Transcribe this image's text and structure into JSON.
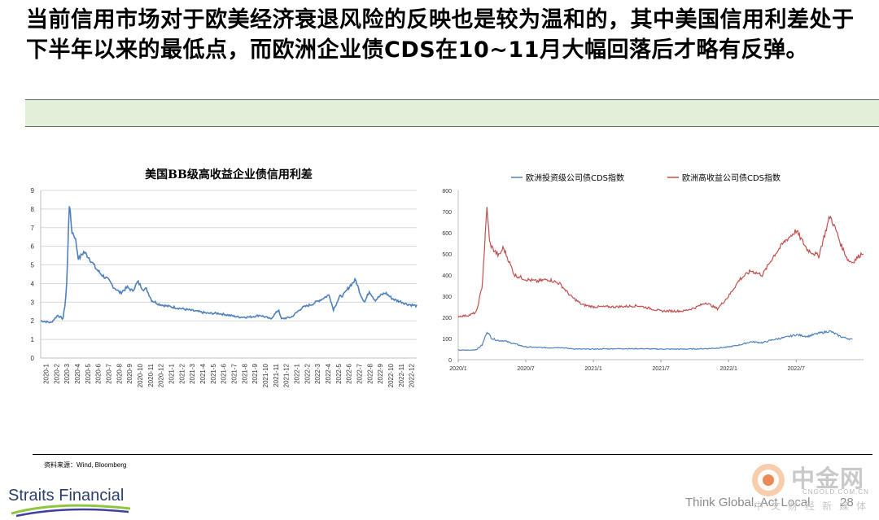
{
  "headline": "当前信用市场对于欧美经济衰退风险的反映也是较为温和的，其中美国信用利差处于下半年以来的最低点，而欧洲企业债CDS在10~11月大幅回落后才略有反弹。",
  "source": "资料来源：Wind, Bloomberg",
  "footer": {
    "logo": "Straits Financial",
    "slogan": "Think Global. Act Local",
    "page": "28"
  },
  "watermark": {
    "name": "中金网",
    "url": "CNGOLD.COM.CN",
    "sub": "中文财经新媒体"
  },
  "colors": {
    "header_bar": "#e2efd9",
    "us_series": "#4f81bd",
    "eu_ig_series": "#4f81bd",
    "eu_hy_series": "#c0504d"
  },
  "chart_data": [
    {
      "type": "line",
      "title": "美国BB级高收益企业债信用利差",
      "ylim": [
        0,
        9
      ],
      "yticks": [
        "0",
        "1",
        "2",
        "3",
        "4",
        "5",
        "6",
        "7",
        "8",
        "9"
      ],
      "xticks": [
        "2020-1",
        "2020-2",
        "2020-3",
        "2020-4",
        "2020-5",
        "2020-6",
        "2020-7",
        "2020-8",
        "2020-9",
        "2020-10",
        "2020-11",
        "2020-12",
        "2021-1",
        "2021-2",
        "2021-3",
        "2021-4",
        "2021-5",
        "2021-6",
        "2021-7",
        "2021-8",
        "2021-9",
        "2021-10",
        "2021-11",
        "2021-12",
        "2022-1",
        "2022-2",
        "2022-3",
        "2022-4",
        "2022-5",
        "2022-6",
        "2022-7",
        "2022-8",
        "2022-9",
        "2022-10",
        "2022-11",
        "2022-12"
      ],
      "grid": true,
      "legend": "none",
      "series": [
        {
          "x": [
            "2020-01",
            "2020-02",
            "2020-02-20",
            "2020-03-05",
            "2020-03-12",
            "2020-03-17",
            "2020-03-23",
            "2020-03-31",
            "2020-04-10",
            "2020-04-20",
            "2020-05-05",
            "2020-05-20",
            "2020-06-10",
            "2020-06-25",
            "2020-07-15",
            "2020-08-01",
            "2020-08-20",
            "2020-09-10",
            "2020-09-25",
            "2020-10-10",
            "2020-10-25",
            "2020-11-05",
            "2020-11-20",
            "2020-12-10",
            "2021-01",
            "2021-02",
            "2021-03",
            "2021-04",
            "2021-05",
            "2021-06",
            "2021-07",
            "2021-08",
            "2021-09",
            "2021-10",
            "2021-11",
            "2021-11-25",
            "2021-12",
            "2022-01",
            "2022-02",
            "2022-03",
            "2022-04",
            "2022-04-20",
            "2022-05",
            "2022-05-20",
            "2022-06",
            "2022-06-20",
            "2022-07-05",
            "2022-07-20",
            "2022-08",
            "2022-08-15",
            "2022-09",
            "2022-09-20",
            "2022-10",
            "2022-10-20",
            "2022-11",
            "2022-11-20",
            "2022-12",
            "2022-12-31"
          ],
          "values": [
            2.0,
            1.9,
            2.3,
            2.1,
            3.0,
            4.3,
            8.4,
            6.8,
            6.5,
            5.3,
            5.7,
            5.4,
            4.8,
            4.5,
            4.2,
            3.8,
            3.5,
            3.8,
            3.6,
            4.1,
            3.7,
            3.7,
            3.1,
            2.9,
            2.8,
            2.7,
            2.6,
            2.5,
            2.4,
            2.4,
            2.3,
            2.2,
            2.2,
            2.3,
            2.1,
            2.6,
            2.1,
            2.2,
            2.7,
            2.9,
            3.2,
            3.4,
            2.6,
            3.3,
            3.4,
            3.9,
            4.2,
            3.4,
            3.0,
            3.6,
            3.1,
            3.4,
            3.5,
            3.2,
            3.1,
            3.0,
            2.9,
            2.8
          ]
        }
      ]
    },
    {
      "type": "line",
      "title": "",
      "ylim": [
        0,
        800
      ],
      "yticks": [
        "0",
        "100",
        "200",
        "300",
        "400",
        "500",
        "600",
        "700",
        "800"
      ],
      "xticks": [
        "2020/1",
        "2020/7",
        "2021/1",
        "2021/7",
        "2022/1",
        "2022/7"
      ],
      "grid": false,
      "legend": "top",
      "series": [
        {
          "name": "欧洲投资级公司债CDS指数",
          "x": [
            "2020-01",
            "2020-02",
            "2020-02-20",
            "2020-03-05",
            "2020-03-18",
            "2020-04-01",
            "2020-04-20",
            "2020-05",
            "2020-06",
            "2020-07",
            "2020-08",
            "2020-09",
            "2020-10",
            "2020-11",
            "2020-12",
            "2021-01",
            "2021-03",
            "2021-05",
            "2021-07",
            "2021-09",
            "2021-11",
            "2021-12",
            "2022-01",
            "2022-02",
            "2022-03",
            "2022-04",
            "2022-05",
            "2022-06",
            "2022-07",
            "2022-08",
            "2022-09",
            "2022-10",
            "2022-11",
            "2022-12"
          ],
          "values": [
            45,
            45,
            48,
            70,
            133,
            100,
            90,
            90,
            75,
            60,
            58,
            56,
            58,
            52,
            50,
            50,
            52,
            52,
            50,
            50,
            52,
            55,
            60,
            70,
            85,
            80,
            95,
            105,
            118,
            110,
            125,
            135,
            108,
            95
          ]
        },
        {
          "name": "欧洲高收益公司债CDS指数",
          "x": [
            "2020-01",
            "2020-02",
            "2020-02-20",
            "2020-03-05",
            "2020-03-18",
            "2020-03-25",
            "2020-04-05",
            "2020-04-20",
            "2020-05",
            "2020-05-20",
            "2020-06",
            "2020-07",
            "2020-08",
            "2020-09",
            "2020-10",
            "2020-11",
            "2020-12",
            "2021-01",
            "2021-03",
            "2021-05",
            "2021-07",
            "2021-09",
            "2021-10",
            "2021-11",
            "2021-12",
            "2022-01",
            "2022-02",
            "2022-03",
            "2022-04",
            "2022-05",
            "2022-06",
            "2022-07",
            "2022-08",
            "2022-09",
            "2022-10",
            "2022-10-20",
            "2022-11",
            "2022-11-20",
            "2022-12",
            "2022-12-31"
          ],
          "values": [
            205,
            210,
            225,
            350,
            725,
            550,
            520,
            490,
            530,
            450,
            400,
            380,
            370,
            380,
            360,
            300,
            260,
            250,
            250,
            255,
            230,
            230,
            245,
            270,
            240,
            300,
            380,
            420,
            400,
            490,
            560,
            610,
            520,
            490,
            680,
            600,
            540,
            470,
            460,
            510
          ]
        }
      ]
    }
  ]
}
